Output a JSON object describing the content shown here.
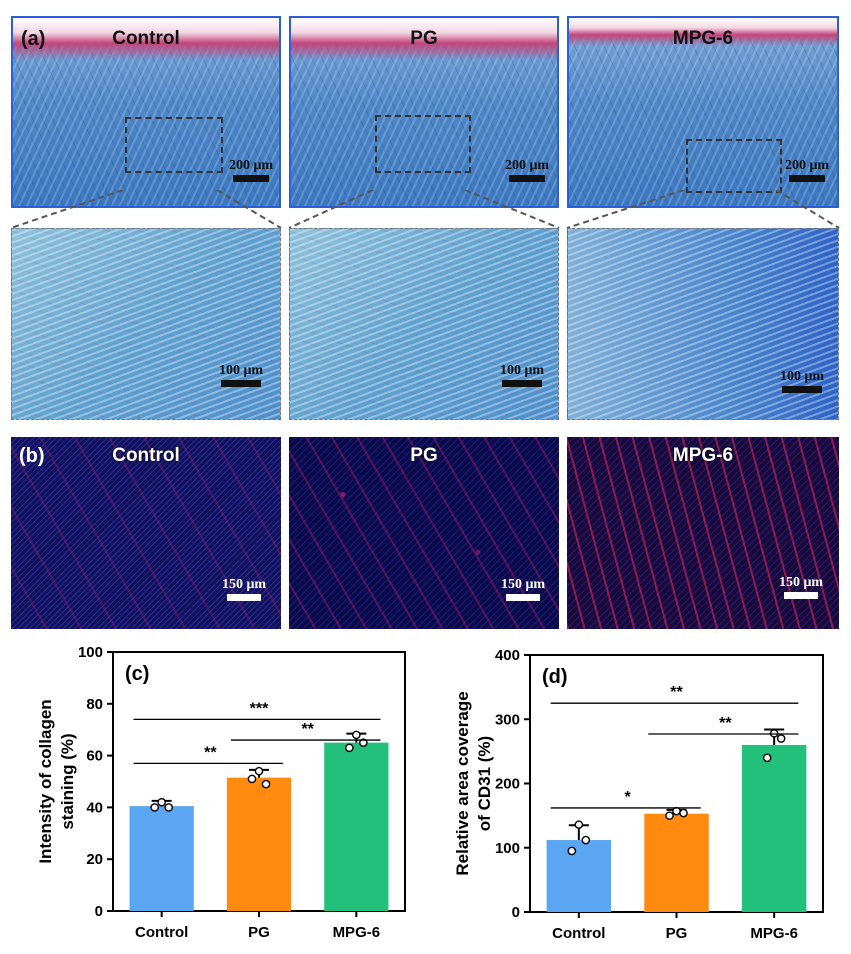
{
  "figure_a": {
    "letter": "(a)",
    "panels": [
      {
        "title": "Control",
        "scale_top": "200 μm",
        "scale_zoom": "100 μm"
      },
      {
        "title": "PG",
        "scale_top": "200 μm",
        "scale_zoom": "100 μm"
      },
      {
        "title": "MPG-6",
        "scale_top": "200 μm",
        "scale_zoom": "100 μm"
      }
    ]
  },
  "figure_b": {
    "letter": "(b)",
    "panels": [
      {
        "title": "Control",
        "scale": "150 μm"
      },
      {
        "title": "PG",
        "scale": "150 μm"
      },
      {
        "title": "MPG-6",
        "scale": "150 μm"
      }
    ]
  },
  "colors": {
    "control": "#5aa6f2",
    "pg": "#ff8a10",
    "mpg6": "#22c07a"
  },
  "chart_data": [
    {
      "type": "bar",
      "letter": "(c)",
      "categories": [
        "Control",
        "PG",
        "MPG-6"
      ],
      "values": [
        40.5,
        51.5,
        65
      ],
      "errors": [
        2,
        3,
        3.5
      ],
      "points": [
        [
          42,
          40,
          40
        ],
        [
          54,
          51,
          49
        ],
        [
          68,
          63,
          65
        ]
      ],
      "ylabel": "Intensity of collagen staining (%)",
      "ylim": [
        0,
        100
      ],
      "yticks": [
        0,
        20,
        40,
        60,
        80,
        100
      ],
      "significance": [
        {
          "from": 0,
          "to": 2,
          "label": "***",
          "y": 74
        },
        {
          "from": 1,
          "to": 2,
          "label": "**",
          "y": 66
        },
        {
          "from": 0,
          "to": 1,
          "label": "**",
          "y": 57
        }
      ]
    },
    {
      "type": "bar",
      "letter": "(d)",
      "categories": [
        "Control",
        "PG",
        "MPG-6"
      ],
      "values": [
        112,
        153,
        260
      ],
      "errors": [
        23,
        6,
        24
      ],
      "points": [
        [
          136,
          95,
          112
        ],
        [
          157,
          150,
          154
        ],
        [
          278,
          240,
          270
        ]
      ],
      "ylabel": "Relative area coverage of CD31 (%)",
      "ylim": [
        0,
        400
      ],
      "yticks": [
        0,
        100,
        200,
        300,
        400
      ],
      "significance": [
        {
          "from": 0,
          "to": 2,
          "label": "**",
          "y": 325
        },
        {
          "from": 1,
          "to": 2,
          "label": "**",
          "y": 277
        },
        {
          "from": 0,
          "to": 1,
          "label": "*",
          "y": 162
        }
      ]
    }
  ]
}
